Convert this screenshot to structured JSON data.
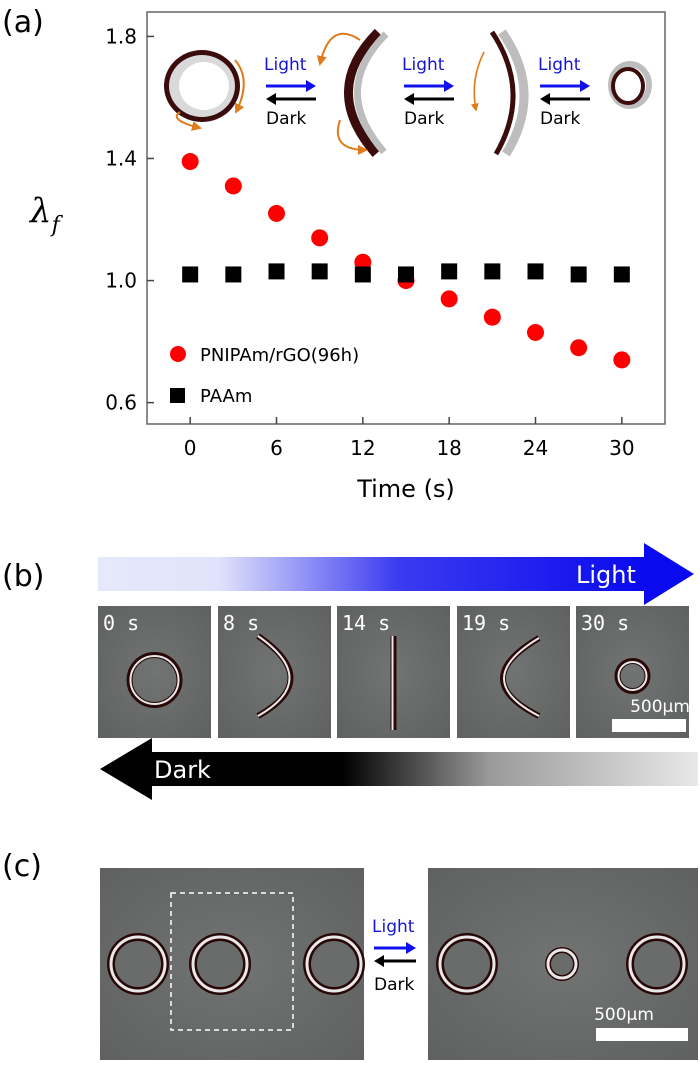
{
  "panel_labels": {
    "a": "(a)",
    "b": "(b)",
    "c": "(c)"
  },
  "chart_data": {
    "type": "scatter",
    "xlabel": "Time (s)",
    "ylabel": "λ",
    "ylabel_sub": "f",
    "xlim": [
      -3,
      33
    ],
    "ylim": [
      0.53,
      1.88
    ],
    "xticks": [
      "0",
      "6",
      "12",
      "18",
      "24",
      "30"
    ],
    "yticks": [
      "0.6",
      "1.0",
      "1.4",
      "1.8"
    ],
    "legend_position": "bottom-left",
    "series": [
      {
        "name": "PNIPAm/rGO(96h)",
        "marker": "circle",
        "color": "#ff0000",
        "x": [
          0,
          3,
          6,
          9,
          12,
          15,
          18,
          21,
          24,
          27,
          30
        ],
        "y": [
          1.39,
          1.31,
          1.22,
          1.14,
          1.06,
          1.0,
          0.94,
          0.88,
          0.83,
          0.78,
          0.74
        ]
      },
      {
        "name": "PAAm",
        "marker": "square",
        "color": "#000000",
        "x": [
          0,
          3,
          6,
          9,
          12,
          15,
          18,
          21,
          24,
          27,
          30
        ],
        "y": [
          1.02,
          1.02,
          1.03,
          1.03,
          1.02,
          1.02,
          1.03,
          1.03,
          1.03,
          1.02,
          1.02
        ]
      }
    ]
  },
  "transitions": {
    "light": "Light",
    "dark": "Dark"
  },
  "panel_b": {
    "light_label": "Light",
    "dark_label": "Dark",
    "frames": [
      "0 s",
      "8 s",
      "14 s",
      "19 s",
      "30 s"
    ],
    "scale_bar": "500μm"
  },
  "panel_c": {
    "light": "Light",
    "dark": "Dark",
    "scale_bar": "500μm"
  },
  "colors": {
    "accent_blue": "#1010ee",
    "marker_red": "#ff0000",
    "photo_gray": "#6a6c6c"
  }
}
